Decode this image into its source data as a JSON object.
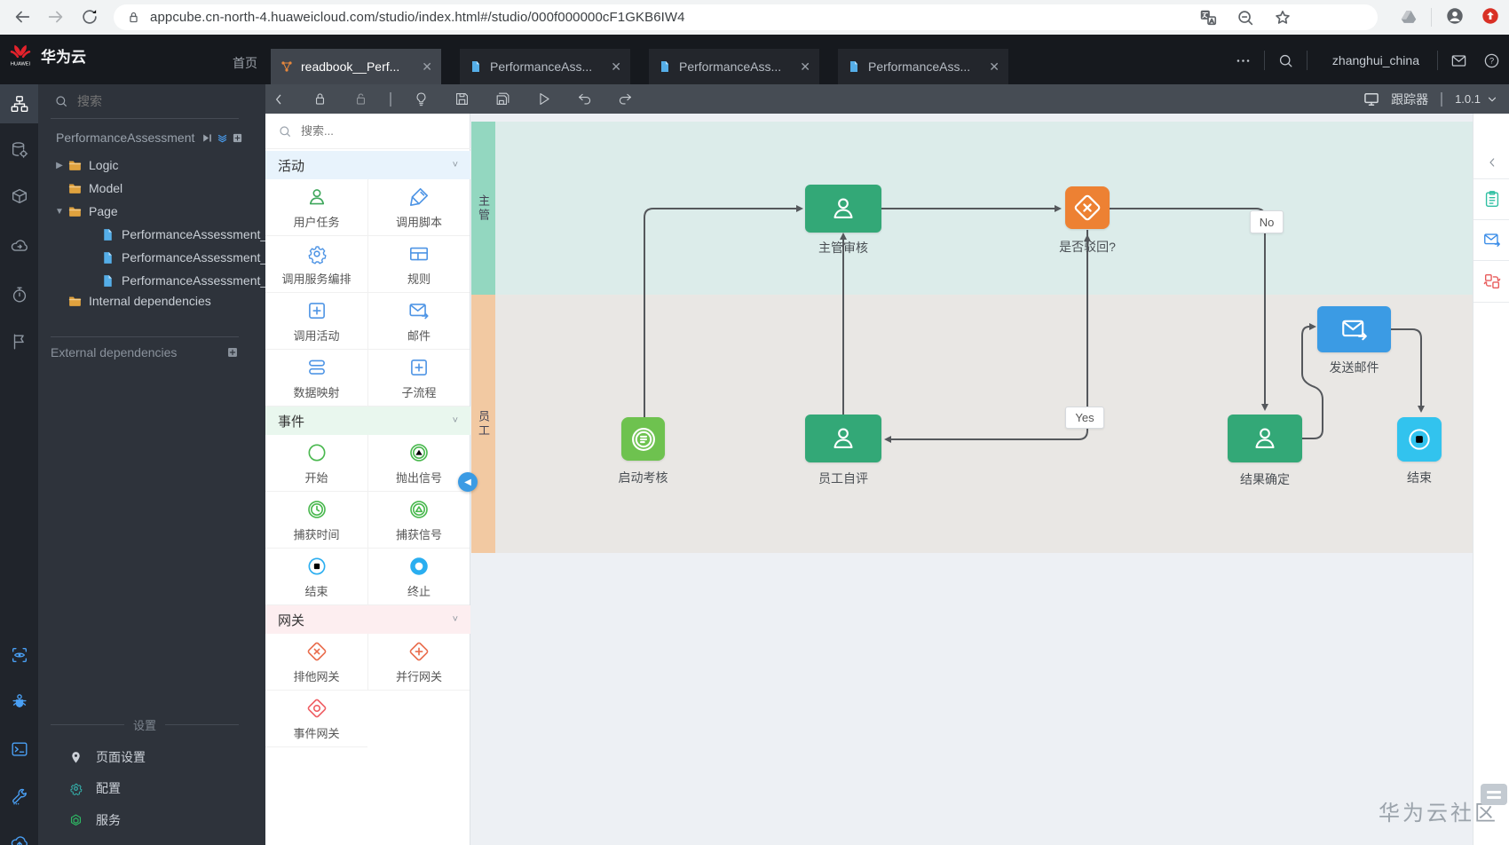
{
  "browser": {
    "url": "appcube.cn-north-4.huaweicloud.com/studio/index.html#/studio/000f000000cF1GKB6IW4",
    "nav_icons": [
      "back-icon",
      "forward-icon",
      "reload-icon"
    ],
    "pill_icons": [
      "lock-icon",
      "translate-icon",
      "zoom-out-icon",
      "star-icon"
    ],
    "right_icons": [
      "drive-icon",
      "avatar-icon",
      "update-icon"
    ]
  },
  "app_header": {
    "brand": "华为云",
    "brand_logo": "huawei-logo",
    "home": "首页",
    "tabs": [
      {
        "title": "readbook__Perf...",
        "icon": "flow-icon",
        "active": true,
        "close": "✕"
      },
      {
        "title": "PerformanceAss...",
        "icon": "file-icon",
        "active": false,
        "close": "✕"
      },
      {
        "title": "PerformanceAss...",
        "icon": "file-icon",
        "active": false,
        "close": "✕"
      },
      {
        "title": "PerformanceAss...",
        "icon": "file-icon",
        "active": false,
        "close": "✕"
      }
    ],
    "more_icon": "ellipsis-icon",
    "search_icon": "search-icon",
    "username": "zhanghui_china",
    "mail_icon": "mail-icon",
    "help_icon": "help-icon"
  },
  "left_rail": {
    "top": [
      {
        "name": "sitemap-icon",
        "active": true
      },
      {
        "name": "database-gear-icon"
      },
      {
        "name": "package-icon"
      },
      {
        "name": "cloud-sync-icon"
      },
      {
        "name": "stopwatch-icon"
      },
      {
        "name": "flag-run-icon"
      }
    ],
    "bottom": [
      {
        "name": "preview-eye-icon"
      },
      {
        "name": "bug-icon"
      },
      {
        "name": "terminal-icon"
      },
      {
        "name": "wrench-icon"
      },
      {
        "name": "cloud-upload-icon"
      }
    ]
  },
  "explorer": {
    "search_placeholder": "搜索",
    "project": "PerformanceAssessment",
    "project_icons": [
      "play-bar-icon",
      "chevron-stack-icon",
      "plus-box-icon"
    ],
    "tree": [
      {
        "label": "Logic",
        "icon": "folder-icon",
        "arrow": "right",
        "depth": 0
      },
      {
        "label": "Model",
        "icon": "folder-icon",
        "arrow": "none",
        "depth": 0
      },
      {
        "label": "Page",
        "icon": "folder-icon",
        "arrow": "down",
        "depth": 0
      },
      {
        "label": "PerformanceAssessment_...",
        "icon": "file-icon",
        "arrow": "none",
        "depth": 1
      },
      {
        "label": "PerformanceAssessment_...",
        "icon": "file-icon",
        "arrow": "none",
        "depth": 1
      },
      {
        "label": "PerformanceAssessment_...",
        "icon": "file-icon",
        "arrow": "none",
        "depth": 1
      },
      {
        "label": "Internal dependencies",
        "icon": "folder-icon",
        "arrow": "none",
        "depth": 0
      }
    ],
    "external_label": "External dependencies",
    "external_add_icon": "plus-box-icon",
    "settings_title": "设置",
    "settings": [
      {
        "label": "页面设置",
        "icon": "pin-icon",
        "color": "#e8703a"
      },
      {
        "label": "配置",
        "icon": "gear-icon",
        "color": "#35b8b2"
      },
      {
        "label": "服务",
        "icon": "hex-service-icon",
        "color": "#2eb864"
      }
    ]
  },
  "toolbar": {
    "left_icons": [
      "collapse-chevron-icon",
      "lock-icon",
      "unlock-icon",
      "separator",
      "bulb-icon",
      "save-icon",
      "save-all-icon",
      "play-icon",
      "undo-icon",
      "redo-icon"
    ],
    "monitor_icon": "monitor-icon",
    "tracker": "跟踪器",
    "version": "1.0.1",
    "version_chevron": "chevron-down-icon"
  },
  "palette": {
    "search_placeholder": "搜索...",
    "sections": [
      {
        "title": "活动",
        "header_color": "#e8f3fc",
        "items": [
          {
            "label": "用户任务",
            "icon": "person-icon",
            "color": "#3fa75c"
          },
          {
            "label": "调用脚本",
            "icon": "script-icon",
            "color": "#4f95e5"
          },
          {
            "label": "调用服务编排",
            "icon": "gear-icon",
            "color": "#4f95e5"
          },
          {
            "label": "规则",
            "icon": "table-icon",
            "color": "#4f95e5"
          },
          {
            "label": "调用活动",
            "icon": "plus-square-icon",
            "color": "#4f95e5"
          },
          {
            "label": "邮件",
            "icon": "mail-arrow-icon",
            "color": "#4f95e5"
          },
          {
            "label": "数据映射",
            "icon": "stack-icon",
            "color": "#4f95e5"
          },
          {
            "label": "子流程",
            "icon": "plus-square-icon",
            "color": "#4f95e5"
          }
        ]
      },
      {
        "title": "事件",
        "header_color": "#e9f7ee",
        "items": [
          {
            "label": "开始",
            "icon": "circle-icon",
            "color": "#49b84e"
          },
          {
            "label": "抛出信号",
            "icon": "circle-triangle-filled-icon",
            "color": "#49b84e"
          },
          {
            "label": "捕获时间",
            "icon": "circle-clock-icon",
            "color": "#49b84e"
          },
          {
            "label": "捕获信号",
            "icon": "circle-triangle-icon",
            "color": "#49b84e"
          },
          {
            "label": "结束",
            "icon": "circle-square-icon",
            "color": "#2aaef0"
          },
          {
            "label": "终止",
            "icon": "donut-icon",
            "color": "#2aaef0"
          }
        ]
      },
      {
        "title": "网关",
        "header_color": "#fdeef0",
        "items": [
          {
            "label": "排他网关",
            "icon": "diamond-x-icon",
            "color": "#e96c4c"
          },
          {
            "label": "并行网关",
            "icon": "diamond-plus-icon",
            "color": "#e96c4c"
          },
          {
            "label": "事件网关",
            "icon": "diamond-circle-icon",
            "color": "#ef5e63"
          }
        ]
      }
    ]
  },
  "diagram": {
    "lanes": [
      {
        "label": "主管",
        "strip_color": "#93d7c0",
        "fill_color": "#dcecea"
      },
      {
        "label": "员工",
        "strip_color": "#f2c9a2",
        "fill_color": "#e9e7e4"
      }
    ],
    "nodes": [
      {
        "id": "start",
        "label": "启动考核",
        "type": "start-event",
        "icon": "doc-circle-icon",
        "color": "#6ec24f"
      },
      {
        "id": "mgr",
        "label": "主管审核",
        "type": "user-task",
        "icon": "person-icon",
        "color": "#33a877"
      },
      {
        "id": "gw",
        "label": "是否驳回?",
        "type": "gateway",
        "icon": "diamond-x-icon",
        "color": "#ed8133"
      },
      {
        "id": "emp",
        "label": "员工自评",
        "type": "user-task",
        "icon": "person-icon",
        "color": "#33a877"
      },
      {
        "id": "result",
        "label": "结果确定",
        "type": "user-task",
        "icon": "person-icon",
        "color": "#33a877"
      },
      {
        "id": "mail",
        "label": "发送邮件",
        "type": "send-mail",
        "icon": "mail-arrow-icon",
        "color": "#3b9be4"
      },
      {
        "id": "end",
        "label": "结束",
        "type": "end-event",
        "icon": "circle-square-icon",
        "color": "#32c3ee"
      }
    ],
    "edge_labels": [
      {
        "id": "no",
        "text": "No"
      },
      {
        "id": "yes",
        "text": "Yes"
      }
    ],
    "edge_color": "#55585c",
    "watermark": "华为云社区"
  },
  "right_panel": {
    "collapse_icon": "chevron-left-icon",
    "icons": [
      {
        "name": "clipboard-icon",
        "color": "#2fbfa2"
      },
      {
        "name": "mail-arrow-icon",
        "color": "#3b8de8"
      },
      {
        "name": "swap-squares-icon",
        "color": "#e85b5b"
      }
    ]
  }
}
